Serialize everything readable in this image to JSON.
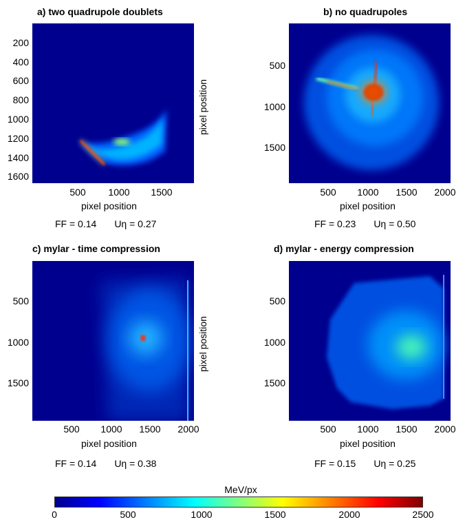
{
  "chart_data": [
    {
      "type": "heatmap",
      "title": "a) two quadrupole doublets",
      "xlabel": "pixel position",
      "ylabel": "pixel position",
      "x_ticks": [
        "500",
        "1000",
        "1500"
      ],
      "y_ticks": [
        "200",
        "400",
        "600",
        "800",
        "1000",
        "1200",
        "1400",
        "1600"
      ],
      "xlim": [
        0,
        1850
      ],
      "ylim": [
        1700,
        0
      ],
      "metrics": {
        "ff": "FF = 0.14",
        "u": "Uη = 0.27"
      }
    },
    {
      "type": "heatmap",
      "title": "b) no quadrupoles",
      "xlabel": "pixel position",
      "ylabel": "",
      "x_ticks": [
        "500",
        "1000",
        "1500",
        "2000"
      ],
      "y_ticks": [
        "500",
        "1000",
        "1500"
      ],
      "xlim": [
        0,
        2050
      ],
      "ylim": [
        1950,
        0
      ],
      "metrics": {
        "ff": "FF = 0.23",
        "u": "Uη = 0.50"
      }
    },
    {
      "type": "heatmap",
      "title": "c) mylar -  time compression",
      "xlabel": "pixel position",
      "ylabel": "pixel position",
      "x_ticks": [
        "500",
        "1000",
        "1500",
        "2000"
      ],
      "y_ticks": [
        "500",
        "1000",
        "1500"
      ],
      "xlim": [
        0,
        2050
      ],
      "ylim": [
        1950,
        0
      ],
      "metrics": {
        "ff": "FF = 0.14",
        "u": "Uη = 0.38"
      }
    },
    {
      "type": "heatmap",
      "title": "d) mylar - energy compression",
      "xlabel": "pixel position",
      "ylabel": "",
      "x_ticks": [
        "500",
        "1000",
        "1500",
        "2000"
      ],
      "y_ticks": [
        "500",
        "1000",
        "1500"
      ],
      "xlim": [
        0,
        2050
      ],
      "ylim": [
        1950,
        0
      ],
      "metrics": {
        "ff": "FF = 0.15",
        "u": "Uη = 0.25"
      }
    }
  ],
  "colorbar": {
    "label": "MeV/px",
    "ticks": [
      "0",
      "500",
      "1000",
      "1500",
      "2000",
      "2500"
    ],
    "range": [
      0,
      2500
    ],
    "colormap": "jet"
  }
}
